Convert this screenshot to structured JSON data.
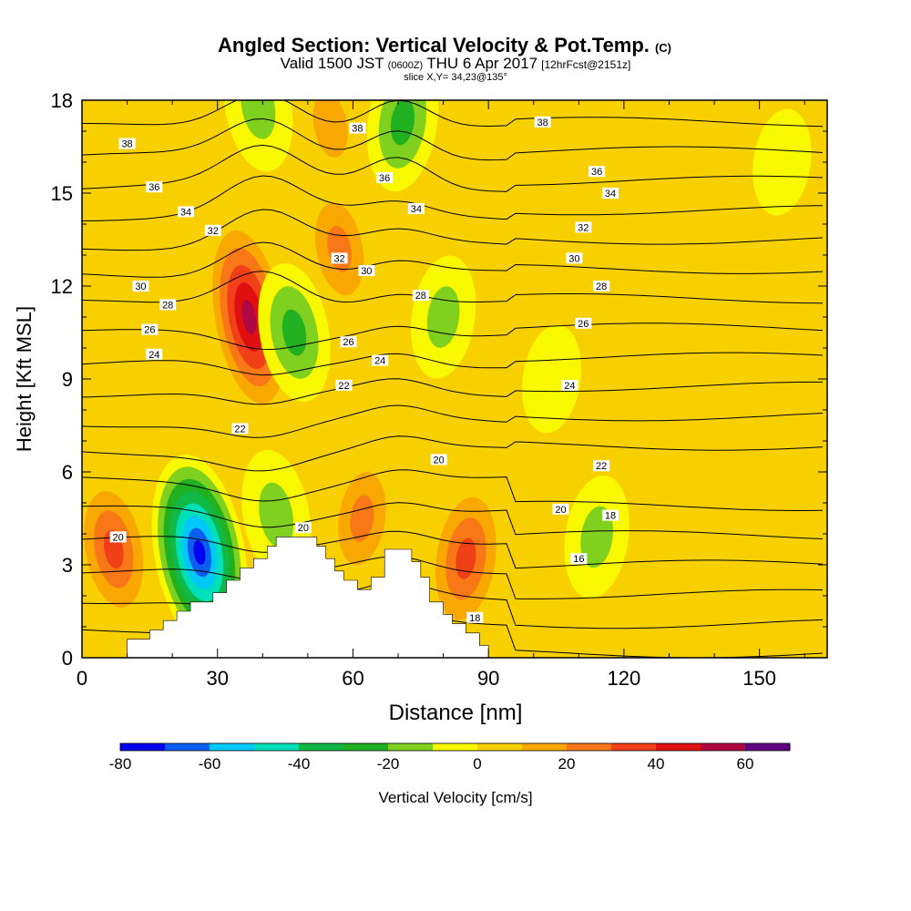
{
  "chart_data": {
    "type": "heatmap",
    "title": "Angled Section: Vertical Velocity & Pot.Temp.",
    "title_suffix": "(C)",
    "subtitle": {
      "part1": "Valid 1500 JST",
      "part2": "(0600Z)",
      "part3": "THU 6 Apr 2017",
      "part4": "[12hrFcst@2151z]"
    },
    "slice_label": "slice X,Y= 34,23@135°",
    "xlabel": "Distance [nm]",
    "ylabel": "Height [Kft MSL]",
    "xlim": [
      0,
      165
    ],
    "ylim": [
      0,
      18
    ],
    "x_ticks": [
      "0",
      "30",
      "60",
      "90",
      "120",
      "150"
    ],
    "y_ticks": [
      "0",
      "3",
      "6",
      "9",
      "12",
      "15",
      "18"
    ],
    "x_tick_values": [
      0,
      30,
      60,
      90,
      120,
      150
    ],
    "y_tick_values": [
      0,
      3,
      6,
      9,
      12,
      15,
      18
    ],
    "grid": false,
    "fill_variable": "Vertical Velocity",
    "contour_variable": "Potential Temperature",
    "colorbar": {
      "label": "Vertical Velocity [cm/s]",
      "min": -80,
      "max": 70,
      "step": 10,
      "tick_labels": [
        "-80",
        "-60",
        "-40",
        "-20",
        "0",
        "20",
        "40",
        "60"
      ],
      "tick_values": [
        -80,
        -60,
        -40,
        -20,
        0,
        20,
        40,
        60
      ],
      "colors": [
        "#0000ee",
        "#0b5ef0",
        "#00c8f8",
        "#00e0b8",
        "#10b848",
        "#20b020",
        "#80d020",
        "#f8f800",
        "#f8d000",
        "#f8a800",
        "#f87818",
        "#f04018",
        "#e01010",
        "#b00840",
        "#600080"
      ]
    },
    "background_fill": "#f8d000",
    "velocity_features": [
      {
        "kind": "updraft",
        "x": 37,
        "z": 11.0,
        "peak": 60
      },
      {
        "kind": "updraft",
        "x": 85,
        "z": 3.2,
        "peak": 40
      },
      {
        "kind": "updraft",
        "x": 7,
        "z": 3.5,
        "peak": 35
      },
      {
        "kind": "updraft",
        "x": 57,
        "z": 13.2,
        "peak": 25
      },
      {
        "kind": "updraft",
        "x": 62,
        "z": 4.5,
        "peak": 25
      },
      {
        "kind": "updraft",
        "x": 55,
        "z": 17.2,
        "peak": 20
      },
      {
        "kind": "downdraft",
        "x": 26,
        "z": 3.4,
        "peak": -80
      },
      {
        "kind": "downdraft",
        "x": 71,
        "z": 17.3,
        "peak": -25
      },
      {
        "kind": "downdraft",
        "x": 47,
        "z": 10.5,
        "peak": -25
      },
      {
        "kind": "downdraft",
        "x": 39,
        "z": 17.8,
        "peak": -20
      },
      {
        "kind": "downdraft",
        "x": 80,
        "z": 11.0,
        "peak": -15
      },
      {
        "kind": "downdraft",
        "x": 43,
        "z": 4.6,
        "peak": -20
      },
      {
        "kind": "downdraft",
        "x": 114,
        "z": 3.9,
        "peak": -15
      },
      {
        "kind": "weak-up",
        "x": 147,
        "z": 2.5,
        "peak": 8
      },
      {
        "kind": "weak-up",
        "x": 127,
        "z": 12.0,
        "peak": 8
      },
      {
        "kind": "weak-up",
        "x": 142,
        "z": 9.5,
        "peak": 6
      },
      {
        "kind": "weak-down",
        "x": 104,
        "z": 9.0,
        "peak": -6
      },
      {
        "kind": "weak-down",
        "x": 155,
        "z": 16.0,
        "peak": -5
      }
    ],
    "isotherm_labels": [
      {
        "text": "38",
        "x": 10,
        "z": 16.6
      },
      {
        "text": "36",
        "x": 16,
        "z": 15.2
      },
      {
        "text": "34",
        "x": 23,
        "z": 14.4
      },
      {
        "text": "32",
        "x": 29,
        "z": 13.8
      },
      {
        "text": "30",
        "x": 13,
        "z": 12.0
      },
      {
        "text": "28",
        "x": 19,
        "z": 11.4
      },
      {
        "text": "26",
        "x": 15,
        "z": 10.6
      },
      {
        "text": "24",
        "x": 16,
        "z": 9.8
      },
      {
        "text": "38",
        "x": 61,
        "z": 17.1
      },
      {
        "text": "36",
        "x": 67,
        "z": 15.5
      },
      {
        "text": "34",
        "x": 74,
        "z": 14.5
      },
      {
        "text": "32",
        "x": 57,
        "z": 12.9
      },
      {
        "text": "30",
        "x": 63,
        "z": 12.5
      },
      {
        "text": "28",
        "x": 75,
        "z": 11.7
      },
      {
        "text": "26",
        "x": 59,
        "z": 10.2
      },
      {
        "text": "24",
        "x": 66,
        "z": 9.6
      },
      {
        "text": "22",
        "x": 58,
        "z": 8.8
      },
      {
        "text": "22",
        "x": 35,
        "z": 7.4
      },
      {
        "text": "20",
        "x": 79,
        "z": 6.4
      },
      {
        "text": "20",
        "x": 49,
        "z": 4.2
      },
      {
        "text": "20",
        "x": 8,
        "z": 3.9
      },
      {
        "text": "18",
        "x": 87,
        "z": 1.3
      },
      {
        "text": "38",
        "x": 102,
        "z": 17.3
      },
      {
        "text": "36",
        "x": 114,
        "z": 15.7
      },
      {
        "text": "34",
        "x": 117,
        "z": 15.0
      },
      {
        "text": "32",
        "x": 111,
        "z": 13.9
      },
      {
        "text": "30",
        "x": 109,
        "z": 12.9
      },
      {
        "text": "28",
        "x": 115,
        "z": 12.0
      },
      {
        "text": "26",
        "x": 111,
        "z": 10.8
      },
      {
        "text": "24",
        "x": 108,
        "z": 8.8
      },
      {
        "text": "22",
        "x": 115,
        "z": 6.2
      },
      {
        "text": "20",
        "x": 106,
        "z": 4.8
      },
      {
        "text": "18",
        "x": 117,
        "z": 4.6
      },
      {
        "text": "16",
        "x": 110,
        "z": 3.2
      }
    ],
    "terrain": [
      [
        0,
        0
      ],
      [
        10,
        0
      ],
      [
        10,
        0.6
      ],
      [
        15,
        0.6
      ],
      [
        15,
        0.9
      ],
      [
        18,
        0.9
      ],
      [
        18,
        1.2
      ],
      [
        21,
        1.2
      ],
      [
        21,
        1.5
      ],
      [
        24,
        1.5
      ],
      [
        24,
        1.8
      ],
      [
        29,
        1.8
      ],
      [
        29,
        2.1
      ],
      [
        32,
        2.1
      ],
      [
        32,
        2.5
      ],
      [
        35,
        2.5
      ],
      [
        35,
        2.9
      ],
      [
        38,
        2.9
      ],
      [
        38,
        3.2
      ],
      [
        41,
        3.2
      ],
      [
        41,
        3.6
      ],
      [
        43,
        3.6
      ],
      [
        43,
        3.9
      ],
      [
        52,
        3.9
      ],
      [
        52,
        3.6
      ],
      [
        54,
        3.6
      ],
      [
        54,
        3.2
      ],
      [
        56,
        3.2
      ],
      [
        56,
        2.8
      ],
      [
        58,
        2.8
      ],
      [
        58,
        2.5
      ],
      [
        61,
        2.5
      ],
      [
        61,
        2.2
      ],
      [
        64,
        2.2
      ],
      [
        64,
        2.6
      ],
      [
        67,
        2.6
      ],
      [
        67,
        3.5
      ],
      [
        73,
        3.5
      ],
      [
        73,
        3.1
      ],
      [
        75,
        3.1
      ],
      [
        75,
        2.6
      ],
      [
        77,
        2.6
      ],
      [
        77,
        1.8
      ],
      [
        80,
        1.8
      ],
      [
        80,
        1.4
      ],
      [
        82,
        1.4
      ],
      [
        82,
        1.1
      ],
      [
        85,
        1.1
      ],
      [
        85,
        0.8
      ],
      [
        88,
        0.8
      ],
      [
        88,
        0.4
      ],
      [
        90,
        0.4
      ],
      [
        90,
        0
      ],
      [
        0,
        0
      ]
    ]
  }
}
